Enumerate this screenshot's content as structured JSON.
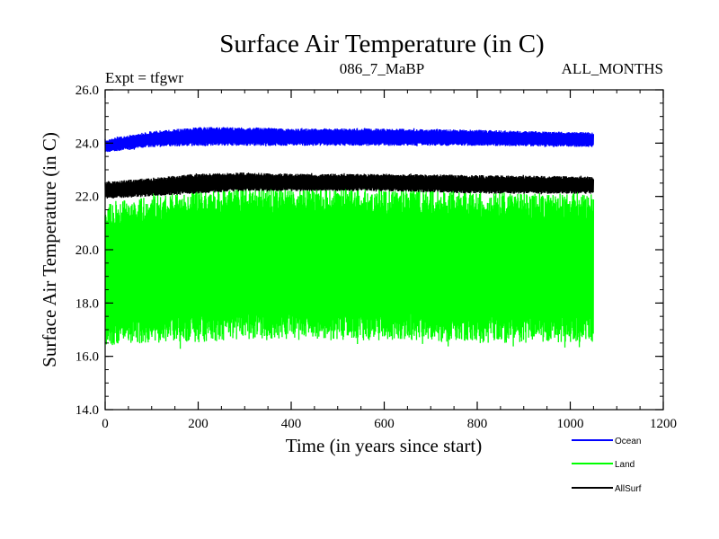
{
  "chart_data": {
    "type": "line",
    "title": "Surface Air Temperature (in C)",
    "subtitle_left": "Expt = tfgwr",
    "subtitle_center": "086_7_MaBP",
    "subtitle_right": "ALL_MONTHS",
    "xlabel": "Time (in years since start)",
    "ylabel": "Surface Air Temperature (in C)",
    "xlim": [
      0,
      1200
    ],
    "ylim": [
      14.0,
      26.0
    ],
    "x_ticks": [
      0,
      200,
      400,
      600,
      800,
      1000,
      1200
    ],
    "y_ticks": [
      "14.0",
      "16.0",
      "18.0",
      "20.0",
      "22.0",
      "24.0",
      "26.0"
    ],
    "x_minor_step": 50,
    "y_minor_step": 0.5,
    "x_data_range": [
      0,
      1050
    ],
    "legend_position": "bottom-right",
    "series": [
      {
        "name": "Ocean",
        "color": "#0000ff",
        "band_min": [
          23.65,
          23.85,
          23.9,
          23.9,
          23.9,
          23.9,
          23.9,
          23.85
        ],
        "band_max": [
          24.15,
          24.45,
          24.6,
          24.6,
          24.55,
          24.55,
          24.5,
          24.4
        ],
        "band_x": [
          0,
          100,
          200,
          300,
          400,
          600,
          800,
          1050
        ]
      },
      {
        "name": "Land",
        "color": "#00ff00",
        "band_min": [
          16.4,
          16.5,
          16.5,
          16.6,
          16.6,
          16.6,
          16.5,
          16.5
        ],
        "band_max": [
          21.8,
          22.0,
          22.3,
          22.4,
          22.3,
          22.3,
          22.2,
          22.1
        ],
        "band_x": [
          0,
          100,
          200,
          300,
          400,
          600,
          800,
          1050
        ]
      },
      {
        "name": "AllSurf",
        "color": "#000000",
        "band_min": [
          21.9,
          22.0,
          22.1,
          22.2,
          22.2,
          22.2,
          22.1,
          22.1
        ],
        "band_max": [
          22.55,
          22.7,
          22.85,
          22.9,
          22.85,
          22.85,
          22.8,
          22.75
        ],
        "band_x": [
          0,
          100,
          200,
          300,
          400,
          600,
          800,
          1050
        ]
      }
    ]
  }
}
